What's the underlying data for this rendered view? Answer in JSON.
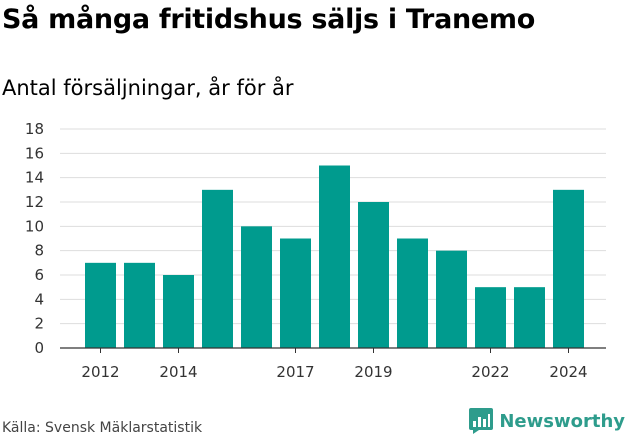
{
  "header": {
    "title": "Så många fritidshus säljs i Tranemo",
    "subtitle": "Antal försäljningar, år för år"
  },
  "footer": {
    "source": "Källa: Svensk Mäklarstatistik",
    "brand": "Newsworthy",
    "brand_icon": "newsworthy-logo-icon"
  },
  "colors": {
    "bar": "#009b8e",
    "grid": "#dddddd",
    "axis": "#333333",
    "brand": "#2e9c8c"
  },
  "chart_data": {
    "type": "bar",
    "title": "Så många fritidshus säljs i Tranemo",
    "subtitle": "Antal försäljningar, år för år",
    "categories": [
      2012,
      2013,
      2014,
      2015,
      2016,
      2017,
      2018,
      2019,
      2020,
      2021,
      2022,
      2023,
      2024
    ],
    "values": [
      7,
      7,
      6,
      13,
      10,
      9,
      15,
      12,
      9,
      8,
      5,
      5,
      13
    ],
    "x_tick_labels": [
      "2012",
      "2014",
      "2017",
      "2019",
      "2022",
      "2024"
    ],
    "y_ticks": [
      0,
      2,
      4,
      6,
      8,
      10,
      12,
      14,
      16,
      18
    ],
    "ylim": [
      0,
      18
    ],
    "grid": true,
    "xlabel": "",
    "ylabel": ""
  }
}
